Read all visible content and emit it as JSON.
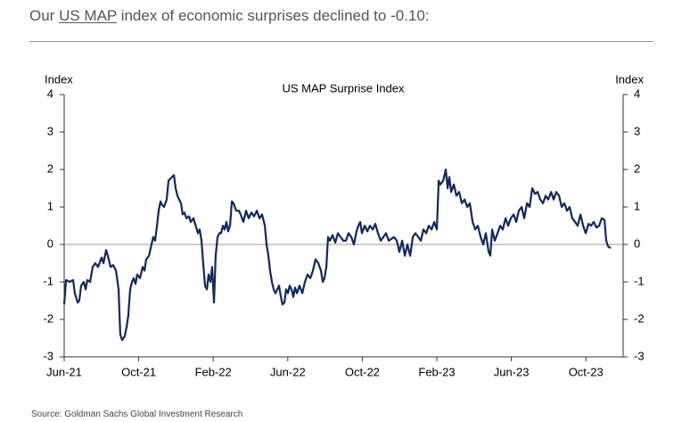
{
  "header": {
    "prefix": "Our",
    "link": "US MAP",
    "suffix": "index of economic surprises declined to -0.10:"
  },
  "source": "Source: Goldman Sachs Global Investment Research",
  "chart_data": {
    "type": "line",
    "title": "US MAP Surprise Index",
    "y_label": "Index",
    "y2_label": "Index",
    "color": "#13275a",
    "xlim": [
      0,
      30
    ],
    "xticks": [
      {
        "value": 0,
        "label": "Jun-21"
      },
      {
        "value": 4,
        "label": "Oct-21"
      },
      {
        "value": 8,
        "label": "Feb-22"
      },
      {
        "value": 12,
        "label": "Jun-22"
      },
      {
        "value": 16,
        "label": "Oct-22"
      },
      {
        "value": 20,
        "label": "Feb-23"
      },
      {
        "value": 24,
        "label": "Jun-23"
      },
      {
        "value": 28,
        "label": "Oct-23"
      }
    ],
    "ylim": [
      -3,
      4
    ],
    "yticks": [
      -3,
      -2,
      -1,
      0,
      1,
      2,
      3,
      4
    ],
    "y2lim": [
      -3,
      4
    ],
    "y2ticks": [
      -3,
      -2,
      -1,
      0,
      1,
      2,
      3,
      4
    ],
    "x": [
      0,
      0.1,
      0.29,
      0.48,
      0.57,
      0.72,
      0.81,
      0.91,
      1.05,
      1.15,
      1.24,
      1.39,
      1.53,
      1.67,
      1.82,
      2.01,
      2.11,
      2.25,
      2.34,
      2.49,
      2.63,
      2.78,
      2.92,
      3.01,
      3.11,
      3.25,
      3.35,
      3.44,
      3.54,
      3.64,
      3.73,
      3.83,
      3.92,
      4.07,
      4.21,
      4.31,
      4.4,
      4.55,
      4.64,
      4.78,
      4.88,
      4.98,
      5.07,
      5.17,
      5.26,
      5.36,
      5.5,
      5.6,
      5.69,
      5.79,
      5.89,
      5.98,
      6.08,
      6.17,
      6.27,
      6.36,
      6.46,
      6.56,
      6.7,
      6.79,
      6.94,
      7.03,
      7.18,
      7.27,
      7.37,
      7.46,
      7.56,
      7.66,
      7.75,
      7.85,
      7.94,
      8.04,
      8.13,
      8.23,
      8.33,
      8.42,
      8.52,
      8.61,
      8.71,
      8.8,
      8.9,
      9.0,
      9.09,
      9.23,
      9.38,
      9.47,
      9.62,
      9.76,
      9.9,
      10.05,
      10.19,
      10.34,
      10.48,
      10.62,
      10.77,
      10.86,
      10.96,
      11.05,
      11.15,
      11.24,
      11.34,
      11.44,
      11.53,
      11.63,
      11.72,
      11.82,
      11.91,
      12.01,
      12.1,
      12.2,
      12.3,
      12.39,
      12.49,
      12.63,
      12.78,
      12.92,
      13.06,
      13.21,
      13.35,
      13.49,
      13.64,
      13.78,
      13.88,
      13.97,
      14.07,
      14.16,
      14.26,
      14.4,
      14.55,
      14.69,
      14.83,
      14.98,
      15.12,
      15.26,
      15.41,
      15.55,
      15.69,
      15.79,
      15.89,
      15.98,
      16.13,
      16.27,
      16.41,
      16.56,
      16.7,
      16.84,
      16.99,
      17.13,
      17.27,
      17.42,
      17.56,
      17.7,
      17.85,
      17.99,
      18.14,
      18.28,
      18.42,
      18.57,
      18.71,
      18.85,
      19.0,
      19.14,
      19.28,
      19.43,
      19.57,
      19.72,
      19.86,
      20.0,
      20.1,
      20.19,
      20.34,
      20.48,
      20.58,
      20.67,
      20.77,
      20.91,
      21.05,
      21.2,
      21.34,
      21.49,
      21.63,
      21.77,
      21.92,
      22.06,
      22.2,
      22.35,
      22.49,
      22.63,
      22.78,
      22.87,
      22.97,
      23.11,
      23.26,
      23.4,
      23.54,
      23.69,
      23.83,
      23.97,
      24.12,
      24.26,
      24.4,
      24.55,
      24.69,
      24.84,
      24.98,
      25.12,
      25.27,
      25.41,
      25.55,
      25.7,
      25.84,
      25.98,
      26.13,
      26.27,
      26.41,
      26.56,
      26.7,
      26.84,
      26.99,
      27.13,
      27.27,
      27.42,
      27.56,
      27.71,
      27.85,
      27.99,
      28.14,
      28.28,
      28.42,
      28.57,
      28.71,
      28.85,
      29.0,
      29.09,
      29.19,
      29.33
    ],
    "values": [
      -1.6,
      -0.95,
      -1.0,
      -0.95,
      -1.3,
      -1.55,
      -1.5,
      -1.1,
      -1.0,
      -1.2,
      -0.95,
      -1.0,
      -0.6,
      -0.5,
      -0.6,
      -0.35,
      -0.5,
      -0.15,
      -0.3,
      -0.6,
      -0.55,
      -0.7,
      -1.2,
      -2.4,
      -2.55,
      -2.45,
      -2.2,
      -1.9,
      -1.2,
      -1.0,
      -0.9,
      -1.05,
      -0.8,
      -0.9,
      -0.6,
      -0.7,
      -0.4,
      -0.3,
      -0.1,
      0.2,
      0.1,
      0.5,
      0.9,
      1.15,
      1.05,
      1.0,
      1.2,
      1.7,
      1.75,
      1.8,
      1.85,
      1.5,
      1.3,
      1.2,
      1.1,
      0.8,
      0.85,
      0.7,
      0.75,
      0.6,
      0.7,
      0.55,
      0.3,
      0.4,
      0.1,
      -0.5,
      -1.1,
      -1.2,
      -0.8,
      -1.0,
      -0.6,
      -1.55,
      -0.3,
      0.2,
      0.3,
      0.3,
      0.5,
      0.4,
      0.6,
      0.35,
      0.5,
      1.15,
      1.1,
      0.9,
      0.9,
      0.8,
      0.6,
      0.9,
      0.7,
      0.85,
      0.75,
      0.9,
      0.7,
      0.8,
      0.5,
      0.0,
      -0.3,
      -0.7,
      -1.0,
      -1.2,
      -1.3,
      -1.2,
      -1.1,
      -1.4,
      -1.6,
      -1.55,
      -1.2,
      -1.3,
      -1.1,
      -1.2,
      -1.4,
      -1.15,
      -1.3,
      -1.1,
      -1.3,
      -1.0,
      -0.8,
      -0.9,
      -0.7,
      -0.4,
      -0.5,
      -0.7,
      -1.0,
      -0.9,
      -0.6,
      0.2,
      0.1,
      0.25,
      0.05,
      0.3,
      0.2,
      0.1,
      0.1,
      0.3,
      0.2,
      0.0,
      0.35,
      0.5,
      0.6,
      0.3,
      0.5,
      0.35,
      0.5,
      0.4,
      0.55,
      0.3,
      0.1,
      0.2,
      0.3,
      0.1,
      0.15,
      0.2,
      0.1,
      -0.2,
      0.1,
      -0.3,
      0.0,
      -0.3,
      0.2,
      0.3,
      0.2,
      0.1,
      0.4,
      0.3,
      0.5,
      0.4,
      0.6,
      0.4,
      1.7,
      1.6,
      1.7,
      2.0,
      1.5,
      1.8,
      1.4,
      1.6,
      1.3,
      1.4,
      1.1,
      1.2,
      1.0,
      1.1,
      0.6,
      0.4,
      0.5,
      0.2,
      0.0,
      0.3,
      -0.2,
      -0.3,
      0.4,
      0.1,
      0.3,
      0.5,
      0.4,
      0.7,
      0.5,
      0.7,
      0.8,
      0.6,
      0.9,
      1.0,
      0.7,
      1.1,
      1.0,
      1.5,
      1.35,
      1.4,
      1.2,
      1.1,
      1.3,
      1.2,
      1.4,
      1.2,
      1.4,
      1.3,
      1.0,
      1.1,
      0.9,
      1.0,
      0.7,
      0.6,
      0.5,
      0.8,
      0.5,
      0.3,
      0.55,
      0.5,
      0.6,
      0.45,
      0.5,
      0.7,
      0.65,
      0.1,
      -0.05,
      -0.1
    ]
  }
}
